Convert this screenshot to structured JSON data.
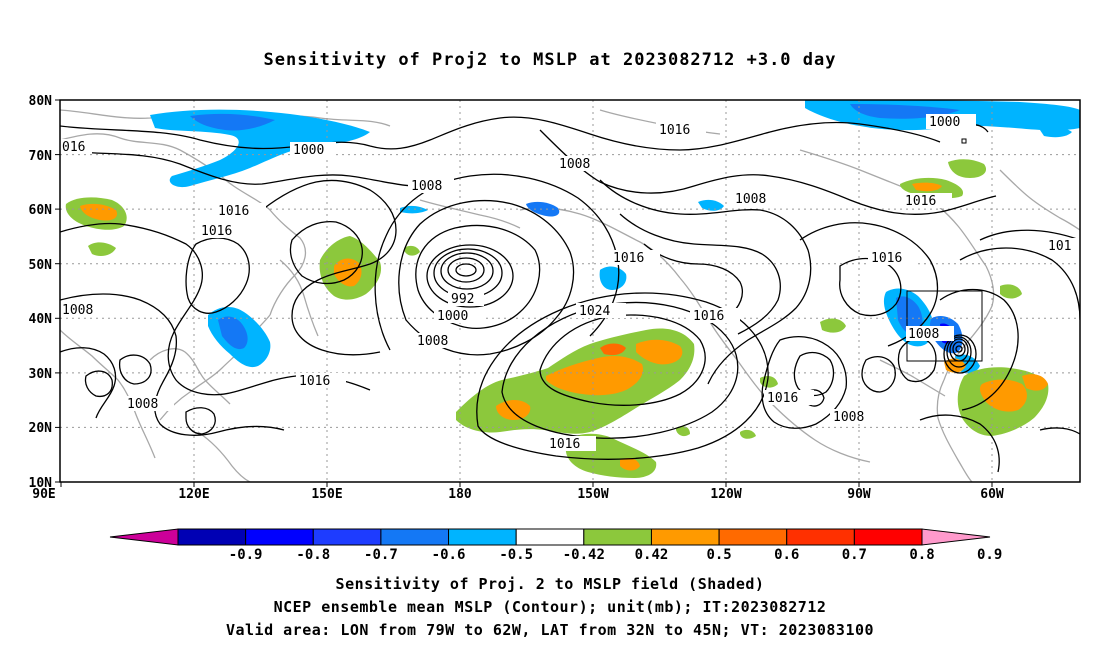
{
  "title": "Sensitivity of Proj2 to MSLP at 2023082712 +3.0 day",
  "map": {
    "lat_labels": [
      "80N",
      "70N",
      "60N",
      "50N",
      "40N",
      "30N",
      "20N",
      "10N"
    ],
    "lon_labels": [
      "90E",
      "120E",
      "150E",
      "180",
      "150W",
      "120W",
      "90W",
      "60W"
    ],
    "isobar_labels": [
      {
        "text": "016",
        "id": "a"
      },
      {
        "text": "1000",
        "id": "b"
      },
      {
        "text": "1008",
        "id": "c"
      },
      {
        "text": "1016",
        "id": "d"
      },
      {
        "text": "1008",
        "id": "e"
      },
      {
        "text": "1016",
        "id": "f"
      },
      {
        "text": "1016",
        "id": "g"
      },
      {
        "text": "1008",
        "id": "h"
      },
      {
        "text": "1000",
        "id": "i"
      },
      {
        "text": "1016",
        "id": "j"
      },
      {
        "text": "1016",
        "id": "k"
      },
      {
        "text": "1008",
        "id": "l"
      },
      {
        "text": "1016",
        "id": "m"
      },
      {
        "text": "992",
        "id": "n"
      },
      {
        "text": "1000",
        "id": "o"
      },
      {
        "text": "1008",
        "id": "p"
      },
      {
        "text": "1024",
        "id": "q"
      },
      {
        "text": "1016",
        "id": "r"
      },
      {
        "text": "1016",
        "id": "s"
      },
      {
        "text": "1016",
        "id": "t"
      },
      {
        "text": "1008",
        "id": "u"
      },
      {
        "text": "1008",
        "id": "v"
      },
      {
        "text": "1016",
        "id": "w"
      },
      {
        "text": "1008",
        "id": "x"
      },
      {
        "text": "101",
        "id": "y"
      }
    ]
  },
  "colorbar": {
    "labels": [
      "-0.9",
      "-0.8",
      "-0.7",
      "-0.6",
      "-0.5",
      "-0.42",
      "0.42",
      "0.5",
      "0.6",
      "0.7",
      "0.8",
      "0.9"
    ],
    "colors": [
      "#cc0099",
      "#0000b4",
      "#0000ff",
      "#1e3cff",
      "#1478f5",
      "#00b4ff",
      "#ffffff",
      "#8cc83c",
      "#ff9a00",
      "#ff6a00",
      "#ff3000",
      "#ff0000",
      "#ff9acc"
    ]
  },
  "captions": {
    "line1": "Sensitivity of Proj. 2 to MSLP field (Shaded)",
    "line2": "NCEP ensemble mean MSLP (Contour); unit(mb); IT:2023082712",
    "line3": "Valid area: LON from 79W to 62W, LAT from 32N to 45N; VT: 2023083100"
  }
}
